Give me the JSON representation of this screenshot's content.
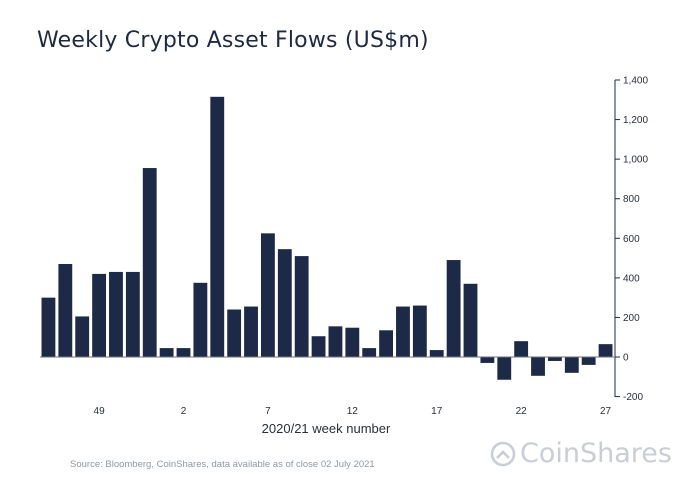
{
  "chart_data": {
    "type": "bar",
    "title": "Weekly Crypto Asset Flows (US$m)",
    "xlabel": "2020/21 week number",
    "ylabel": "",
    "ylim": [
      -200,
      1400
    ],
    "y_ticks": [
      -200,
      0,
      200,
      400,
      600,
      800,
      1000,
      1200,
      1400
    ],
    "y_tick_labels": [
      "-200",
      "0",
      "200",
      "400",
      "600",
      "800",
      "1,000",
      "1,200",
      "1,400"
    ],
    "y_axis_side": "right",
    "x_tick_labels": [
      {
        "index": 3,
        "label": "49"
      },
      {
        "index": 8,
        "label": "2"
      },
      {
        "index": 13,
        "label": "7"
      },
      {
        "index": 18,
        "label": "12"
      },
      {
        "index": 23,
        "label": "17"
      },
      {
        "index": 28,
        "label": "22"
      },
      {
        "index": 33,
        "label": "27"
      }
    ],
    "values": [
      300,
      470,
      205,
      420,
      430,
      430,
      955,
      45,
      45,
      375,
      1315,
      240,
      255,
      625,
      545,
      510,
      105,
      155,
      148,
      45,
      135,
      255,
      260,
      35,
      490,
      370,
      -30,
      -115,
      80,
      -95,
      -20,
      -80,
      -40,
      65
    ],
    "bar_color": "#1c2a48"
  },
  "source": "Source: Bloomberg, CoinShares, data available as of close 02 July 2021",
  "brand": {
    "name": "CoinShares",
    "icon": "coinshares-logo-icon"
  }
}
